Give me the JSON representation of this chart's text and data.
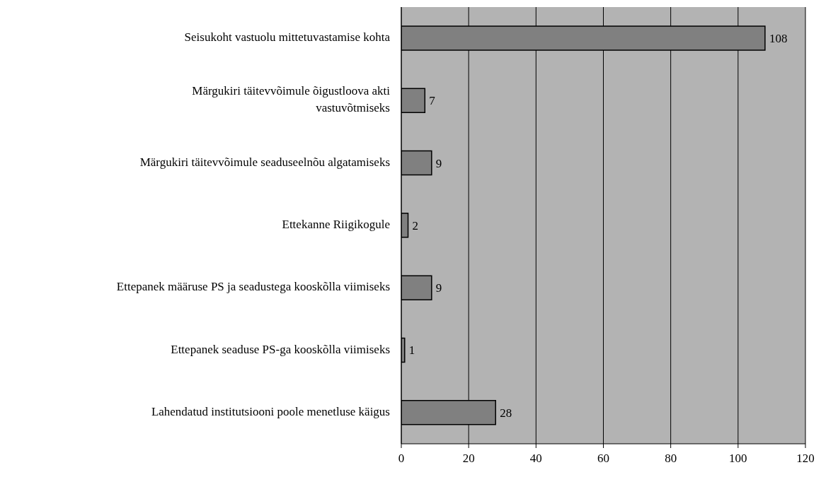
{
  "chart_data": {
    "type": "bar",
    "orientation": "horizontal",
    "categories": [
      "Seisukoht vastuolu mittetuvastamise kohta",
      "Märgukiri täitevvõimule õigustloova akti vastuvõtmiseks",
      "Märgukiri täitevvõimule seaduseelnõu algatamiseks",
      "Ettekanne Riigikogule",
      "Ettepanek määruse PS ja seadustega kooskõlla viimiseks",
      "Ettepanek seaduse PS-ga kooskõlla viimiseks",
      "Lahendatud institutsiooni poole menetluse käigus"
    ],
    "values": [
      108,
      7,
      9,
      2,
      9,
      1,
      28
    ],
    "color": "#808080",
    "xlim": [
      0,
      120
    ],
    "xticks": [
      0,
      20,
      40,
      60,
      80,
      100,
      120
    ],
    "grid": "x",
    "data_labels": true
  }
}
